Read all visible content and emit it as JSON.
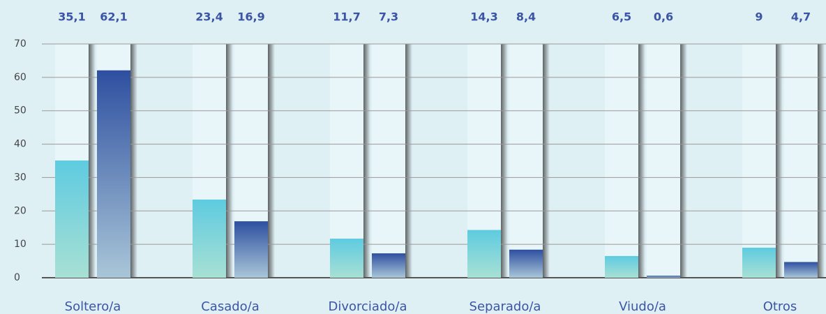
{
  "chart_data": {
    "type": "bar",
    "categories": [
      "Soltero/a",
      "Casado/a",
      "Divorciado/a",
      "Separado/a",
      "Viudo/a",
      "Otros"
    ],
    "series": [
      {
        "color": "#5ecbe0",
        "values": [
          35.1,
          23.4,
          11.7,
          14.3,
          6.5,
          9
        ],
        "value_labels": [
          "35,1",
          "23,4",
          "11,7",
          "14,3",
          "6,5",
          "9"
        ]
      },
      {
        "color": "#2e4fa0",
        "values": [
          62.1,
          16.9,
          7.3,
          8.4,
          0.6,
          4.7
        ],
        "value_labels": [
          "62,1",
          "16,9",
          "7,3",
          "8,4",
          "0,6",
          "4,7"
        ]
      }
    ],
    "ylim": [
      0,
      70
    ],
    "yticks": [
      0,
      10,
      20,
      30,
      40,
      50,
      60,
      70
    ],
    "grid": true
  }
}
